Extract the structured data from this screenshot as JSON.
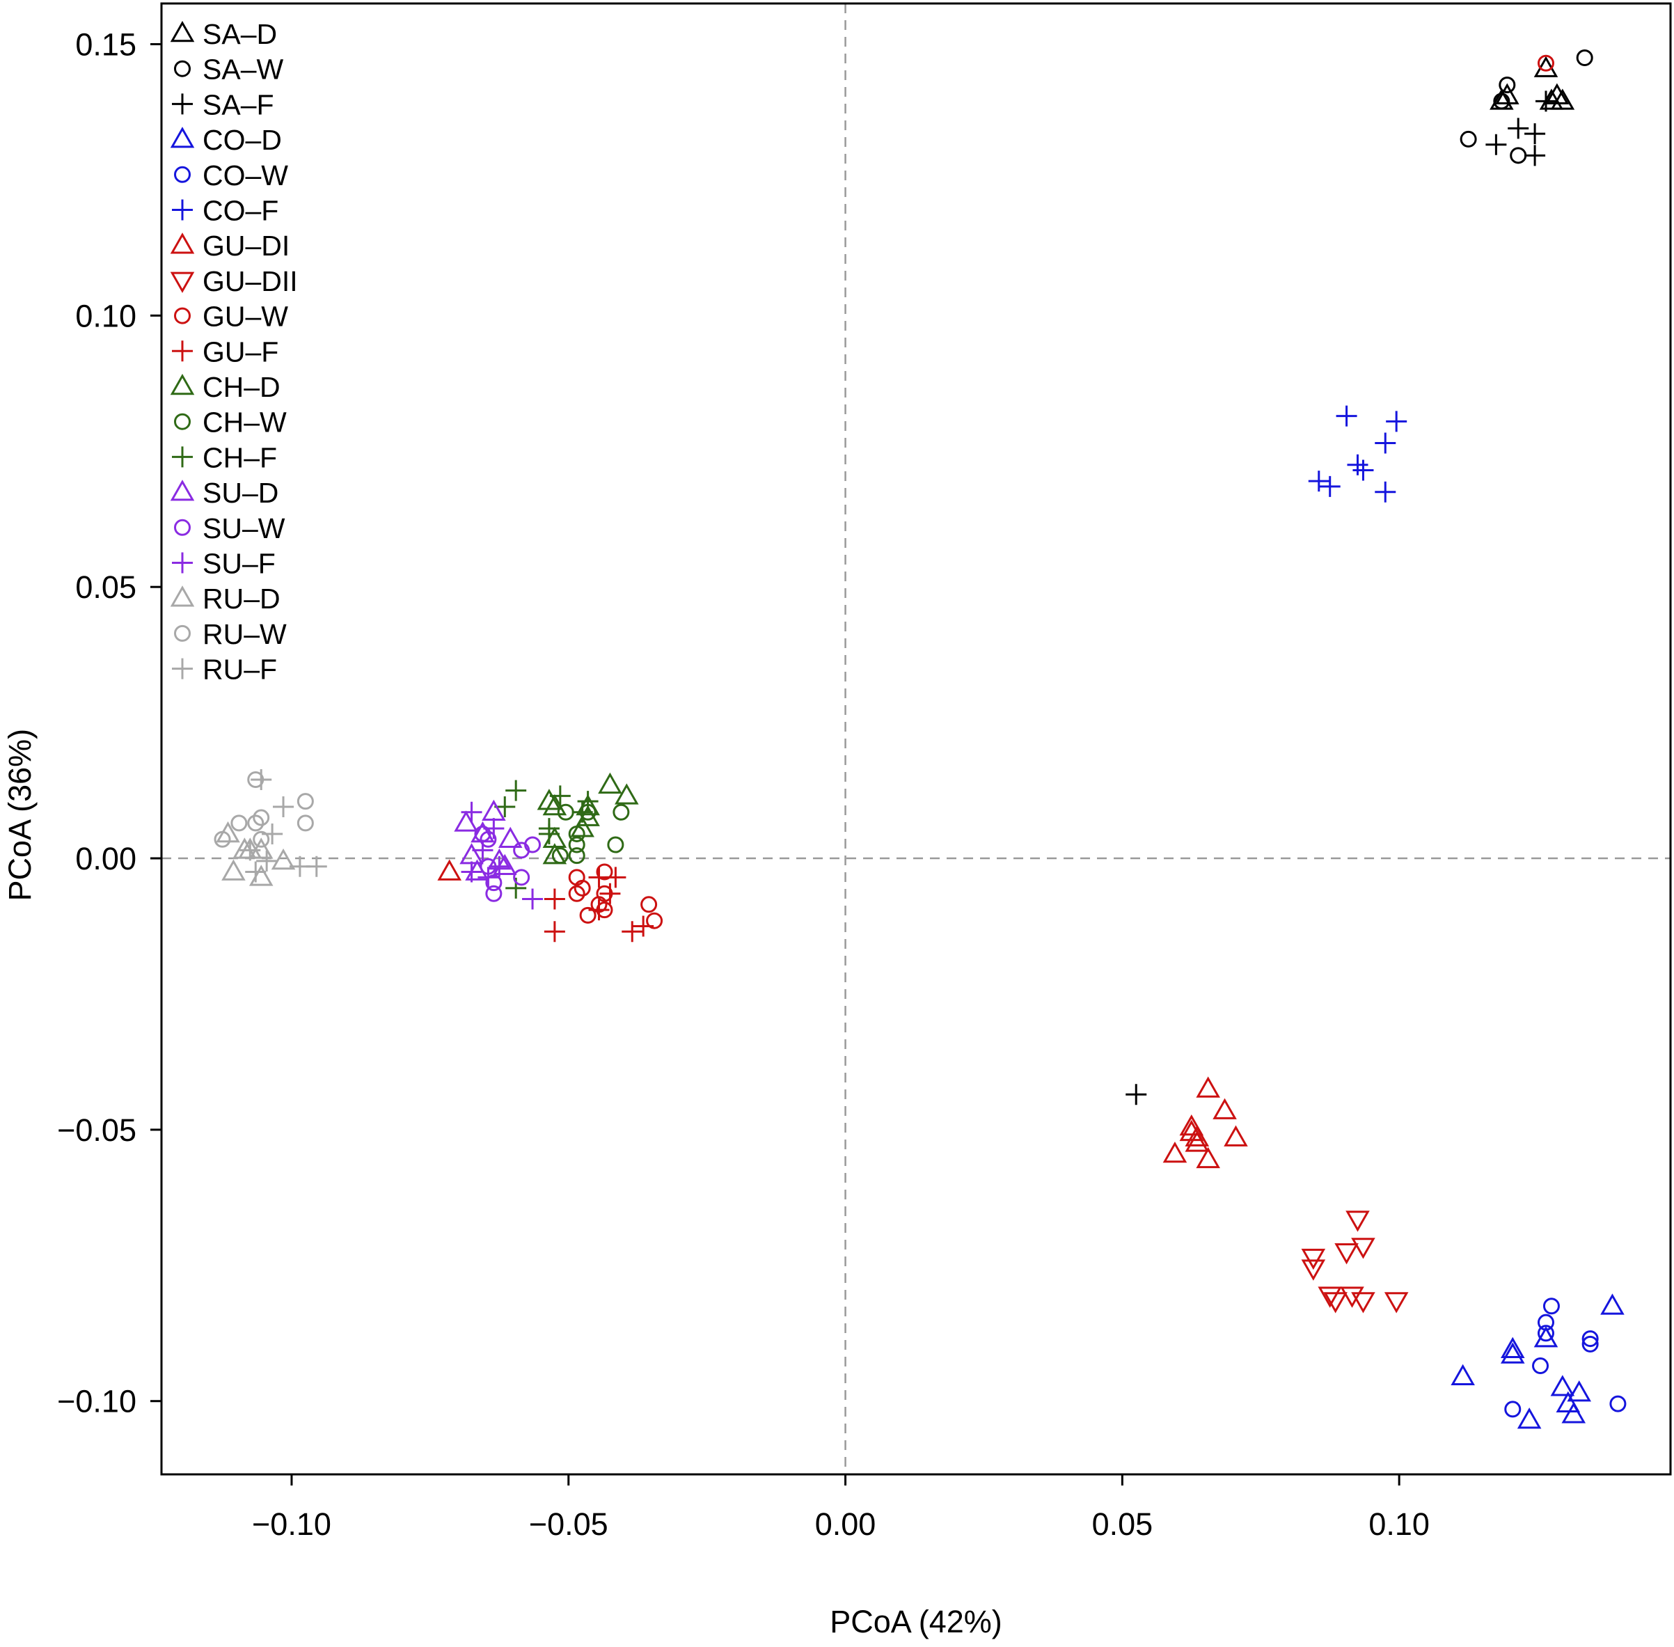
{
  "chart_data": {
    "type": "scatter",
    "title": "",
    "xlabel": "PCoA (42%)",
    "ylabel": "PCoA (36%)",
    "xlim": [
      -0.1235,
      0.149
    ],
    "ylim": [
      -0.1135,
      0.1575
    ],
    "xticks": [
      -0.1,
      -0.05,
      0.0,
      0.05,
      0.1
    ],
    "xtick_labels": [
      "−0.10",
      "−0.05",
      "0.00",
      "0.05",
      "0.10"
    ],
    "yticks": [
      -0.1,
      -0.05,
      0.0,
      0.05,
      0.1,
      0.15
    ],
    "ytick_labels": [
      "−0.10",
      "−0.05",
      "0.00",
      "0.05",
      "0.10",
      "0.15"
    ],
    "grid": false,
    "reference_lines": [
      {
        "axis": "x",
        "value": 0,
        "style": "dashed"
      },
      {
        "axis": "y",
        "value": 0,
        "style": "dashed"
      }
    ],
    "legend_position": "top-left",
    "series": [
      {
        "name": "SA–D",
        "marker": "triangle",
        "color": "#000000",
        "points": [
          [
            0.1185,
            0.1395
          ],
          [
            0.1195,
            0.1405
          ],
          [
            0.1265,
            0.1455
          ],
          [
            0.1275,
            0.1395
          ],
          [
            0.1285,
            0.1405
          ],
          [
            0.1295,
            0.1395
          ]
        ]
      },
      {
        "name": "SA–W",
        "marker": "circle",
        "color": "#000000",
        "points": [
          [
            0.1195,
            0.1425
          ],
          [
            0.1185,
            0.1395
          ],
          [
            0.1335,
            0.1475
          ],
          [
            0.1125,
            0.1325
          ],
          [
            0.1215,
            0.1295
          ]
        ]
      },
      {
        "name": "SA–F",
        "marker": "plus",
        "color": "#000000",
        "points": [
          [
            0.1265,
            0.1395
          ],
          [
            0.1175,
            0.1315
          ],
          [
            0.1215,
            0.1345
          ],
          [
            0.1245,
            0.1335
          ],
          [
            0.1245,
            0.1295
          ],
          [
            0.0525,
            -0.0435
          ]
        ]
      },
      {
        "name": "CO–D",
        "marker": "triangle",
        "color": "#1515dd",
        "points": [
          [
            0.1385,
            -0.0825
          ],
          [
            0.1205,
            -0.0905
          ],
          [
            0.1205,
            -0.0915
          ],
          [
            0.1265,
            -0.0885
          ],
          [
            0.1115,
            -0.0955
          ],
          [
            0.1295,
            -0.0975
          ],
          [
            0.1325,
            -0.0985
          ],
          [
            0.1305,
            -0.1005
          ],
          [
            0.1235,
            -0.1035
          ],
          [
            0.1315,
            -0.1025
          ]
        ]
      },
      {
        "name": "CO–W",
        "marker": "circle",
        "color": "#1515dd",
        "points": [
          [
            0.1275,
            -0.0825
          ],
          [
            0.1265,
            -0.0855
          ],
          [
            0.1265,
            -0.0875
          ],
          [
            0.1345,
            -0.0885
          ],
          [
            0.1345,
            -0.0895
          ],
          [
            0.1255,
            -0.0935
          ],
          [
            0.1205,
            -0.1015
          ],
          [
            0.1395,
            -0.1005
          ]
        ]
      },
      {
        "name": "CO–F",
        "marker": "plus",
        "color": "#1515dd",
        "points": [
          [
            0.0905,
            0.0815
          ],
          [
            0.0995,
            0.0805
          ],
          [
            0.0975,
            0.0765
          ],
          [
            0.0925,
            0.0725
          ],
          [
            0.0935,
            0.0715
          ],
          [
            0.0855,
            0.0695
          ],
          [
            0.0875,
            0.0685
          ],
          [
            0.0975,
            0.0675
          ]
        ]
      },
      {
        "name": "GU–DI",
        "marker": "triangle",
        "color": "#cc1111",
        "points": [
          [
            0.0655,
            -0.0425
          ],
          [
            0.0685,
            -0.0465
          ],
          [
            0.0625,
            -0.0495
          ],
          [
            0.0625,
            -0.0505
          ],
          [
            0.0635,
            -0.0515
          ],
          [
            0.0635,
            -0.0525
          ],
          [
            0.0705,
            -0.0515
          ],
          [
            0.0595,
            -0.0545
          ],
          [
            0.0655,
            -0.0555
          ],
          [
            -0.0715,
            -0.0025
          ]
        ]
      },
      {
        "name": "GU–DII",
        "marker": "triangle-down",
        "color": "#cc1111",
        "points": [
          [
            0.0925,
            -0.0665
          ],
          [
            0.0935,
            -0.0715
          ],
          [
            0.0905,
            -0.0725
          ],
          [
            0.0845,
            -0.0735
          ],
          [
            0.0845,
            -0.0755
          ],
          [
            0.0875,
            -0.0805
          ],
          [
            0.0885,
            -0.0815
          ],
          [
            0.0915,
            -0.0805
          ],
          [
            0.0935,
            -0.0815
          ],
          [
            0.0995,
            -0.0815
          ]
        ]
      },
      {
        "name": "GU–W",
        "marker": "circle",
        "color": "#cc1111",
        "points": [
          [
            0.1265,
            0.1465
          ],
          [
            -0.0485,
            -0.0035
          ],
          [
            -0.0435,
            -0.0025
          ],
          [
            -0.0475,
            -0.0055
          ],
          [
            -0.0485,
            -0.0065
          ],
          [
            -0.0435,
            -0.0065
          ],
          [
            -0.0445,
            -0.0085
          ],
          [
            -0.0435,
            -0.0095
          ],
          [
            -0.0465,
            -0.0105
          ],
          [
            -0.0355,
            -0.0085
          ],
          [
            -0.0345,
            -0.0115
          ]
        ]
      },
      {
        "name": "GU–F",
        "marker": "plus",
        "color": "#cc1111",
        "points": [
          [
            -0.0445,
            -0.0035
          ],
          [
            -0.0415,
            -0.0035
          ],
          [
            -0.0425,
            -0.0065
          ],
          [
            -0.0525,
            -0.0075
          ],
          [
            -0.0445,
            -0.0095
          ],
          [
            -0.0365,
            -0.0125
          ],
          [
            -0.0385,
            -0.0135
          ],
          [
            -0.0525,
            -0.0135
          ]
        ]
      },
      {
        "name": "CH–D",
        "marker": "triangle",
        "color": "#2f6a16",
        "points": [
          [
            -0.0535,
            0.0105
          ],
          [
            -0.0525,
            0.0095
          ],
          [
            -0.0465,
            0.0095
          ],
          [
            -0.0425,
            0.0135
          ],
          [
            -0.0395,
            0.0115
          ],
          [
            -0.0465,
            0.0075
          ],
          [
            -0.0475,
            0.0055
          ],
          [
            -0.0525,
            0.0035
          ],
          [
            -0.0525,
            0.0005
          ]
        ]
      },
      {
        "name": "CH–W",
        "marker": "circle",
        "color": "#2f6a16",
        "points": [
          [
            -0.0505,
            0.0085
          ],
          [
            -0.0465,
            0.0085
          ],
          [
            -0.0485,
            0.0045
          ],
          [
            -0.0405,
            0.0085
          ],
          [
            -0.0485,
            0.0025
          ],
          [
            -0.0415,
            0.0025
          ],
          [
            -0.0515,
            0.0005
          ],
          [
            -0.0485,
            0.0005
          ]
        ]
      },
      {
        "name": "CH–F",
        "marker": "plus",
        "color": "#2f6a16",
        "points": [
          [
            -0.0595,
            0.0125
          ],
          [
            -0.0515,
            0.0115
          ],
          [
            -0.0465,
            0.0105
          ],
          [
            -0.0615,
            0.0095
          ],
          [
            -0.0475,
            0.0085
          ],
          [
            -0.0535,
            0.0055
          ],
          [
            -0.0535,
            0.0045
          ],
          [
            -0.0595,
            -0.0055
          ]
        ]
      },
      {
        "name": "SU–D",
        "marker": "triangle",
        "color": "#8a2be2",
        "points": [
          [
            -0.0685,
            0.0065
          ],
          [
            -0.0635,
            0.0085
          ],
          [
            -0.0655,
            0.0045
          ],
          [
            -0.0605,
            0.0035
          ],
          [
            -0.0675,
            0.0005
          ],
          [
            -0.0625,
            -0.0005
          ],
          [
            -0.0665,
            -0.0025
          ],
          [
            -0.0615,
            -0.0015
          ]
        ]
      },
      {
        "name": "SU–W",
        "marker": "circle",
        "color": "#8a2be2",
        "points": [
          [
            -0.0655,
            0.0045
          ],
          [
            -0.0645,
            0.0035
          ],
          [
            -0.0585,
            0.0015
          ],
          [
            -0.0565,
            0.0025
          ],
          [
            -0.0645,
            -0.0015
          ],
          [
            -0.0635,
            -0.0045
          ],
          [
            -0.0635,
            -0.0065
          ],
          [
            -0.0585,
            -0.0035
          ]
        ]
      },
      {
        "name": "SU–F",
        "marker": "plus",
        "color": "#8a2be2",
        "points": [
          [
            -0.0675,
            0.0085
          ],
          [
            -0.0635,
            0.0055
          ],
          [
            -0.0655,
            0.0015
          ],
          [
            -0.0625,
            -0.0015
          ],
          [
            -0.0675,
            -0.0025
          ],
          [
            -0.0645,
            -0.0035
          ],
          [
            -0.0565,
            -0.0075
          ]
        ]
      },
      {
        "name": "RU–D",
        "marker": "triangle",
        "color": "#a8a8a8",
        "points": [
          [
            -0.1115,
            0.0045
          ],
          [
            -0.1085,
            0.0015
          ],
          [
            -0.1075,
            0.0015
          ],
          [
            -0.1055,
            0.0015
          ],
          [
            -0.1015,
            -0.0005
          ],
          [
            -0.1105,
            -0.0025
          ],
          [
            -0.1055,
            -0.0035
          ]
        ]
      },
      {
        "name": "RU–W",
        "marker": "circle",
        "color": "#a8a8a8",
        "points": [
          [
            -0.1065,
            0.0145
          ],
          [
            -0.1095,
            0.0065
          ],
          [
            -0.1065,
            0.0065
          ],
          [
            -0.1055,
            0.0075
          ],
          [
            -0.1125,
            0.0035
          ],
          [
            -0.1055,
            0.0035
          ],
          [
            -0.0975,
            0.0105
          ],
          [
            -0.0975,
            0.0065
          ]
        ]
      },
      {
        "name": "RU–F",
        "marker": "plus",
        "color": "#a8a8a8",
        "points": [
          [
            -0.1055,
            0.0145
          ],
          [
            -0.1015,
            0.0095
          ],
          [
            -0.1035,
            0.0045
          ],
          [
            -0.1075,
            0.0015
          ],
          [
            -0.1045,
            -0.0005
          ],
          [
            -0.1065,
            -0.0025
          ],
          [
            -0.0985,
            -0.0015
          ],
          [
            -0.0955,
            -0.0015
          ]
        ]
      }
    ]
  }
}
